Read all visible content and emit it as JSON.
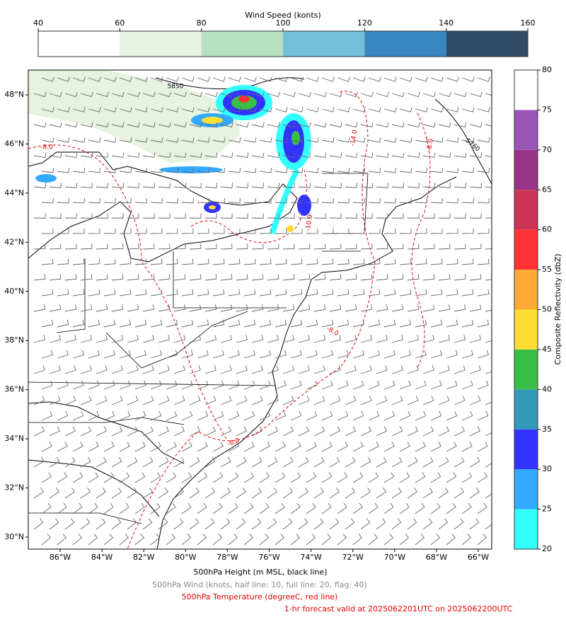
{
  "wind_colorbar": {
    "title": "Wind Speed (konts)",
    "ticks": [
      40,
      60,
      80,
      100,
      120,
      140,
      160
    ],
    "colors": [
      "#ffffff",
      "#e5f3e0",
      "#b5e0c0",
      "#74c0d8",
      "#3a86c0",
      "#2f4a62"
    ]
  },
  "reflectivity_colorbar": {
    "label": "Composite Reflectivity (dbZ)",
    "ticks": [
      20,
      25,
      30,
      35,
      40,
      45,
      50,
      55,
      60,
      65,
      70,
      75,
      80
    ],
    "colors": [
      "#33ffff",
      "#33aaff",
      "#3333ff",
      "#3399bb",
      "#39bf45",
      "#ffdd33",
      "#ffaa33",
      "#ff3333",
      "#cc3355",
      "#993388",
      "#9955b5",
      "#ffffff"
    ]
  },
  "map": {
    "lon_ticks": [
      {
        "value": -86,
        "label": "86°W"
      },
      {
        "value": -84,
        "label": "84°W"
      },
      {
        "value": -82,
        "label": "82°W"
      },
      {
        "value": -80,
        "label": "80°W"
      },
      {
        "value": -78,
        "label": "78°W"
      },
      {
        "value": -76,
        "label": "76°W"
      },
      {
        "value": -74,
        "label": "74°W"
      },
      {
        "value": -72,
        "label": "72°W"
      },
      {
        "value": -70,
        "label": "70°W"
      },
      {
        "value": -68,
        "label": "68°W"
      },
      {
        "value": -66,
        "label": "66°W"
      }
    ],
    "lat_ticks": [
      {
        "value": 48,
        "label": "48°N"
      },
      {
        "value": 46,
        "label": "46°N"
      },
      {
        "value": 44,
        "label": "44°N"
      },
      {
        "value": 42,
        "label": "42°N"
      },
      {
        "value": 40,
        "label": "40°N"
      },
      {
        "value": 38,
        "label": "38°N"
      },
      {
        "value": 36,
        "label": "36°N"
      },
      {
        "value": 34,
        "label": "34°N"
      },
      {
        "value": 32,
        "label": "32°N"
      },
      {
        "value": 30,
        "label": "30°N"
      }
    ],
    "contour_labels": [
      "5850",
      "5760",
      "-8.0",
      "-8.0",
      "-10.0",
      "-14.0",
      "-8.0",
      "-8.0"
    ]
  },
  "legend": {
    "height": "500hPa Height (m MSL, black line)",
    "wind": "500hPa Wind (knots, half line: 10, full line: 20, flag: 40)",
    "temperature": "500hPa Temperature (degreeC, red line)",
    "valid": "1-hr forecast valid at 2025062201UTC on 2025062200UTC"
  }
}
